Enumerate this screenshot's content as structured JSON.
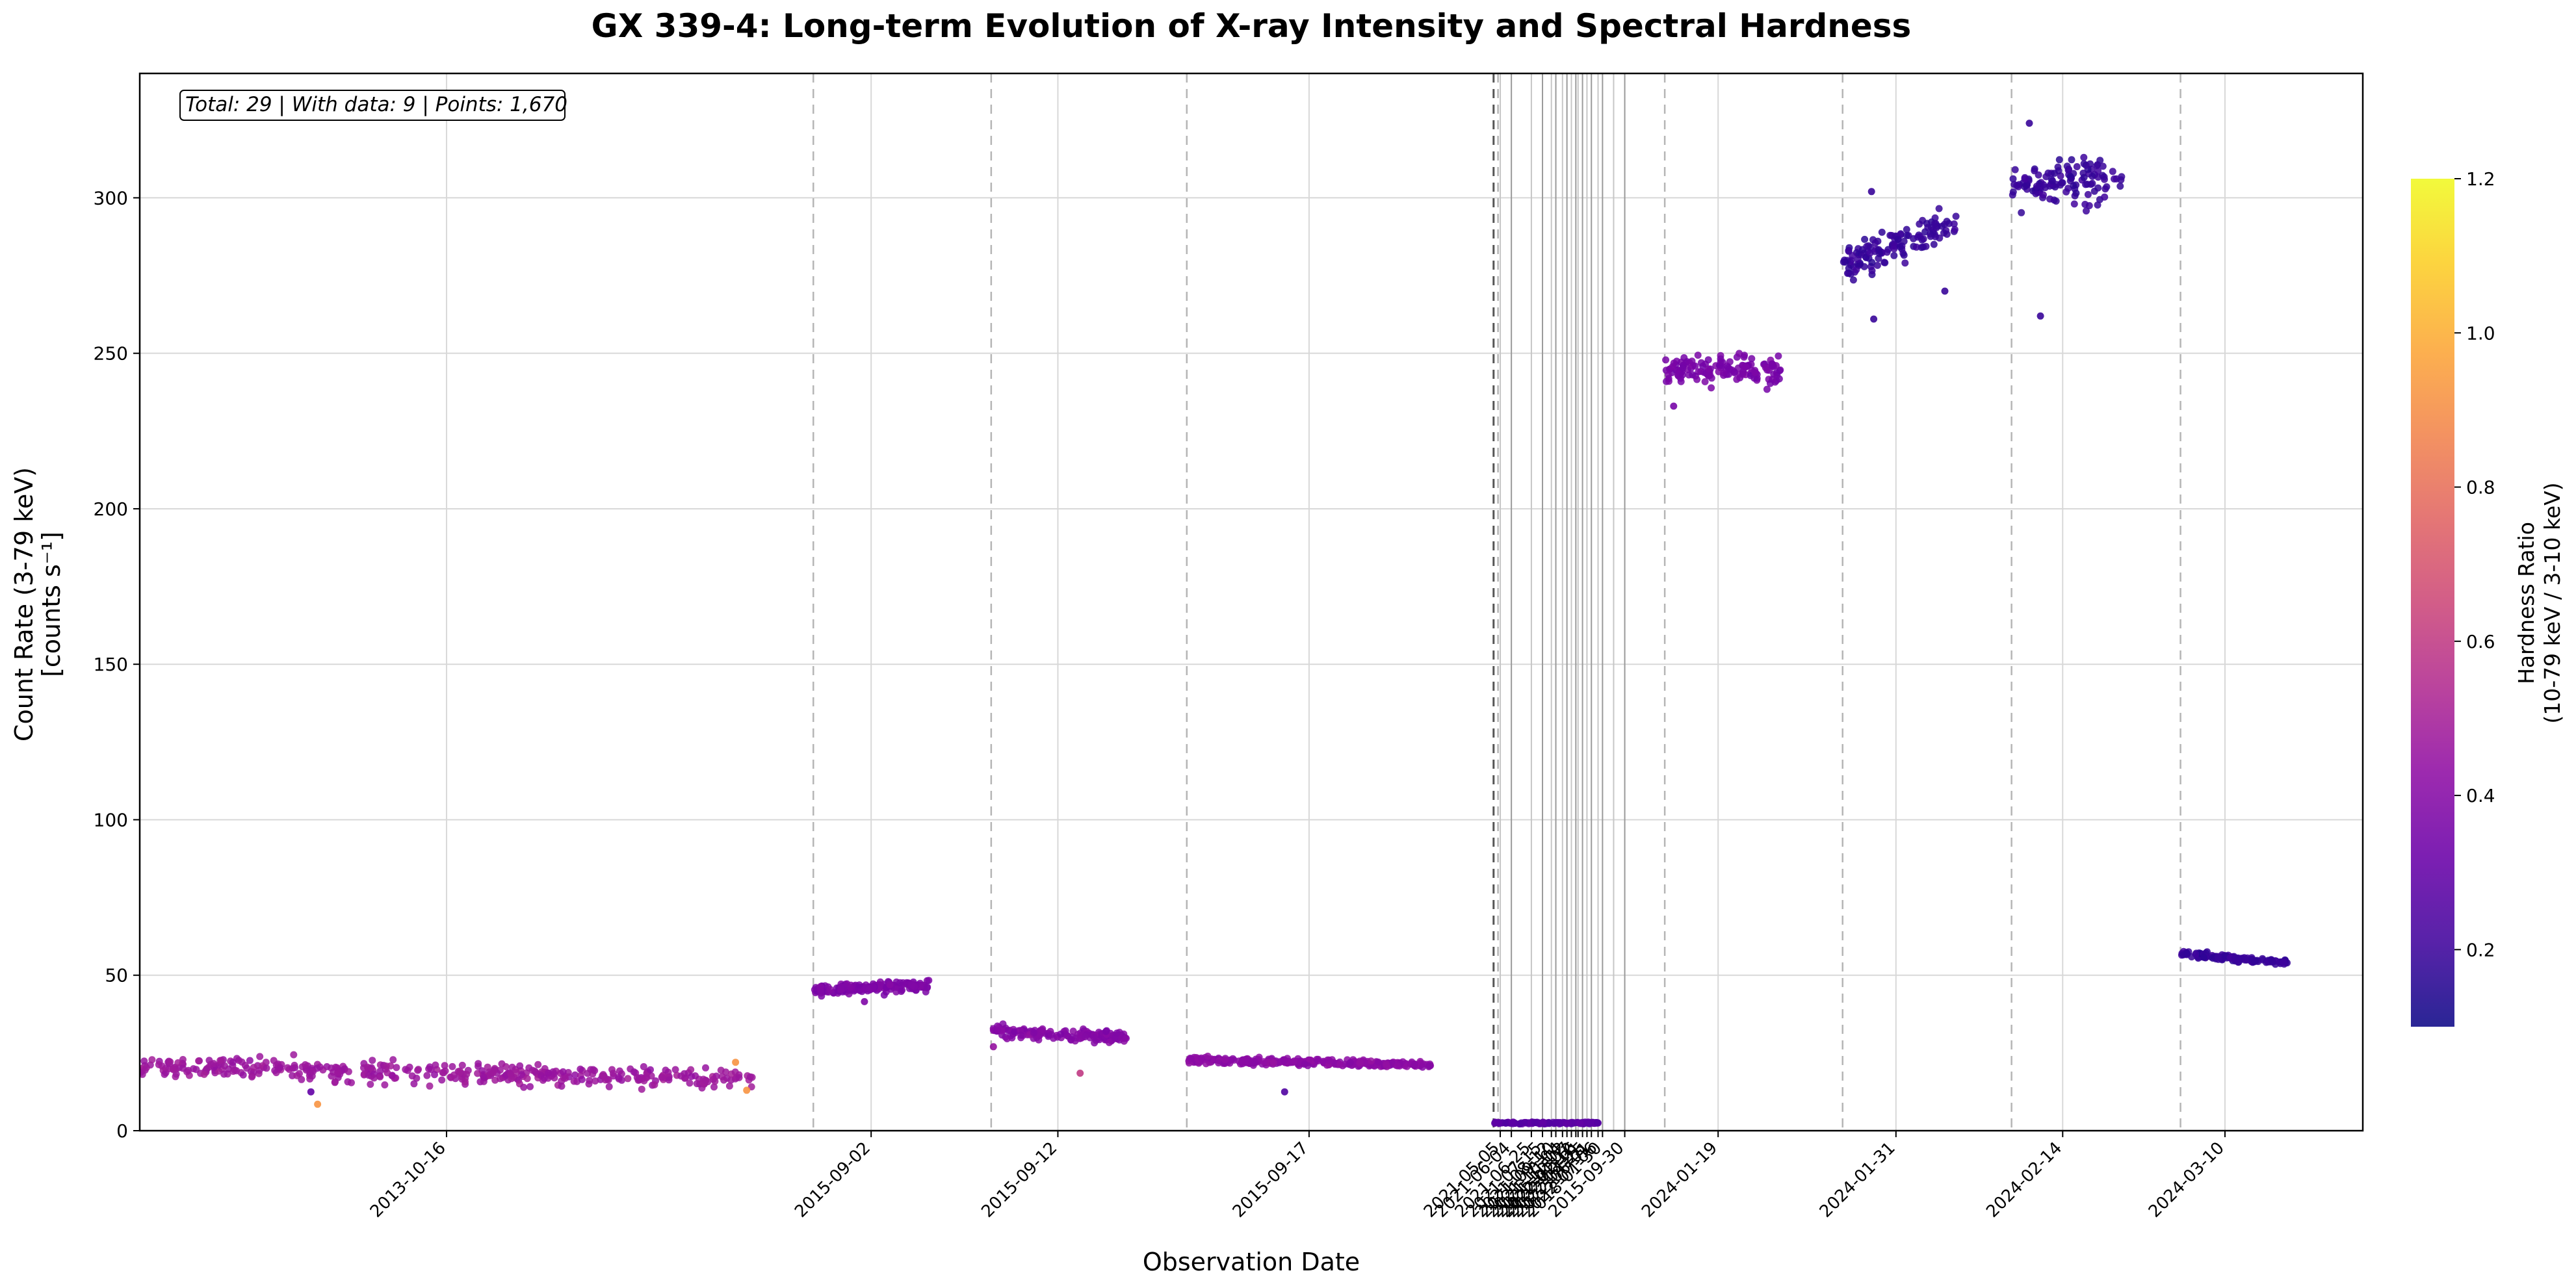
{
  "chart_data": {
    "type": "scatter",
    "title": "GX 339-4: Long-term Evolution of X-ray Intensity and Spectral Hardness",
    "xlabel": "Observation Date",
    "ylabel_line1": "Count Rate (3-79 keV)",
    "ylabel_line2": "[counts s⁻¹]",
    "ylim": [
      0,
      340
    ],
    "yticks": [
      0,
      50,
      100,
      150,
      200,
      250,
      300
    ],
    "x_index_range": [
      0,
      1000
    ],
    "stats_text": "Total: 29 | With data: 9 | Points: 1,670",
    "colorbar": {
      "label_line1": "Hardness Ratio",
      "label_line2": "(10-79 keV / 3-10 keV)",
      "range": [
        0.1,
        1.2
      ],
      "ticks": [
        "0.2",
        "0.4",
        "0.6",
        "0.8",
        "1.0",
        "1.2"
      ],
      "colormap": "plasma"
    },
    "segment_boundaries": [
      303,
      383,
      471,
      609,
      611,
      686,
      766,
      842,
      918
    ],
    "short_observation_lines": [
      612,
      617,
      626,
      631,
      635,
      637,
      640,
      642,
      644,
      646,
      647,
      649,
      651,
      653,
      656,
      658,
      663,
      668
    ],
    "observations": [
      {
        "label": "2013-10-16",
        "x_start": 0,
        "x_end": 276,
        "mean_rate": 18.5,
        "trend": -4.0,
        "scatter": 3.2,
        "hardness": 0.47,
        "n_points": 420,
        "outliers": [
          {
            "x": 80,
            "rate": 8.5,
            "hardness": 0.92
          },
          {
            "x": 77,
            "rate": 12.5,
            "hardness": 0.3
          },
          {
            "x": 268,
            "rate": 22,
            "hardness": 0.92
          },
          {
            "x": 273,
            "rate": 13,
            "hardness": 0.92
          }
        ]
      },
      {
        "label": "2015-09-02",
        "x_start": 303,
        "x_end": 355,
        "mean_rate": 46,
        "trend": 1.5,
        "scatter": 1.6,
        "hardness": 0.38,
        "n_points": 170,
        "outliers": [
          {
            "x": 326,
            "rate": 41.5,
            "hardness": 0.38
          }
        ]
      },
      {
        "label": "2015-09-12",
        "x_start": 383,
        "x_end": 444,
        "mean_rate": 31,
        "trend": -2.0,
        "scatter": 2.0,
        "hardness": 0.4,
        "n_points": 150,
        "outliers": [
          {
            "x": 423,
            "rate": 18.5,
            "hardness": 0.6
          },
          {
            "x": 384,
            "rate": 27,
            "hardness": 0.45
          }
        ]
      },
      {
        "label": "2015-09-17",
        "x_start": 471,
        "x_end": 581,
        "mean_rate": 22,
        "trend": -1.5,
        "scatter": 1.0,
        "hardness": 0.42,
        "n_points": 300,
        "outliers": [
          {
            "x": 515,
            "rate": 12.5,
            "hardness": 0.25
          }
        ]
      },
      {
        "label": "2015-09-30",
        "x_start": 609,
        "x_end": 656,
        "mean_rate": 2.5,
        "trend": 0,
        "scatter": 0.3,
        "hardness": 0.28,
        "n_points": 120,
        "outliers": []
      },
      {
        "label": "2024-01-19",
        "x_start": 686,
        "x_end": 738,
        "mean_rate": 245,
        "trend": 0,
        "scatter": 4.5,
        "hardness": 0.36,
        "n_points": 140,
        "outliers": [
          {
            "x": 690,
            "rate": 233,
            "hardness": 0.36
          }
        ]
      },
      {
        "label": "2024-01-31",
        "x_start": 766,
        "x_end": 817,
        "mean_rate": 285,
        "trend": 15,
        "scatter": 5.0,
        "hardness": 0.19,
        "n_points": 130,
        "outliers": [
          {
            "x": 780,
            "rate": 261,
            "hardness": 0.19
          },
          {
            "x": 779,
            "rate": 302,
            "hardness": 0.19
          },
          {
            "x": 812,
            "rate": 270,
            "hardness": 0.19
          }
        ]
      },
      {
        "label": "2024-02-14",
        "x_start": 842,
        "x_end": 892,
        "mean_rate": 305,
        "trend": 4,
        "scatter": 7.5,
        "hardness": 0.19,
        "n_points": 120,
        "outliers": [
          {
            "x": 855,
            "rate": 262,
            "hardness": 0.19
          },
          {
            "x": 850,
            "rate": 324,
            "hardness": 0.19
          }
        ]
      },
      {
        "label": "2024-03-10",
        "x_start": 918,
        "x_end": 966,
        "mean_rate": 55.5,
        "trend": -3,
        "scatter": 1.0,
        "hardness": 0.19,
        "n_points": 120,
        "outliers": []
      }
    ],
    "xtick_labels": [
      {
        "label": "2013-10-16",
        "x": 138
      },
      {
        "label": "2015-09-02",
        "x": 329
      },
      {
        "label": "2015-09-12",
        "x": 413
      },
      {
        "label": "2015-09-17",
        "x": 526
      },
      {
        "label": "2021-05-05",
        "x": 612
      },
      {
        "label": "2021-06-04",
        "x": 617
      },
      {
        "label": "2021-06-25",
        "x": 626
      },
      {
        "label": "2021-07-15",
        "x": 631
      },
      {
        "label": "2021-08-12",
        "x": 635
      },
      {
        "label": "2021-09-10",
        "x": 637
      },
      {
        "label": "2021-10-04",
        "x": 640
      },
      {
        "label": "2021-11-02",
        "x": 642
      },
      {
        "label": "2021-12-07",
        "x": 644
      },
      {
        "label": "2022-01-12",
        "x": 646
      },
      {
        "label": "2022-02-16",
        "x": 647
      },
      {
        "label": "2022-03-21",
        "x": 649
      },
      {
        "label": "2022-04-25",
        "x": 651
      },
      {
        "label": "2022-06-01",
        "x": 653
      },
      {
        "label": "2022-07-06",
        "x": 656
      },
      {
        "label": "2018-01-30",
        "x": 658
      },
      {
        "label": "2015-09-30",
        "x": 668
      },
      {
        "label": "2024-01-19",
        "x": 710
      },
      {
        "label": "2024-01-31",
        "x": 790
      },
      {
        "label": "2024-02-14",
        "x": 865
      },
      {
        "label": "2024-03-10",
        "x": 938
      }
    ]
  }
}
